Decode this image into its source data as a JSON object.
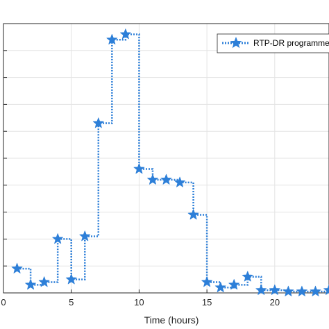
{
  "chart_data": {
    "type": "line",
    "title": "",
    "xlabel": "Time (hours)",
    "ylabel": "",
    "xlim": [
      0,
      24
    ],
    "ylim": [
      0,
      10
    ],
    "grid": true,
    "legend_position": "top-right",
    "x_ticks": [
      0,
      5,
      10,
      15,
      20
    ],
    "x_tick_labels": [
      "0",
      "5",
      "10",
      "15",
      "20"
    ],
    "y_ticks": [
      1,
      2,
      3,
      4,
      5,
      6,
      7,
      8,
      9,
      10
    ],
    "series": [
      {
        "name": "RTP-DR programme",
        "color": "#2d7fd8",
        "marker": "star-icon",
        "line_style": "dotted-step",
        "x": [
          1,
          2,
          3,
          4,
          5,
          6,
          7,
          8,
          9,
          10,
          11,
          12,
          13,
          14,
          15,
          16,
          17,
          18,
          19,
          20,
          21,
          22,
          23,
          24
        ],
        "y": [
          0.9,
          0.3,
          0.4,
          2.0,
          0.5,
          2.1,
          6.3,
          9.4,
          9.6,
          4.6,
          4.2,
          4.2,
          4.1,
          2.9,
          0.4,
          0.2,
          0.3,
          0.6,
          0.1,
          0.1,
          0.05,
          0.05,
          0.05,
          0.1
        ]
      }
    ]
  }
}
